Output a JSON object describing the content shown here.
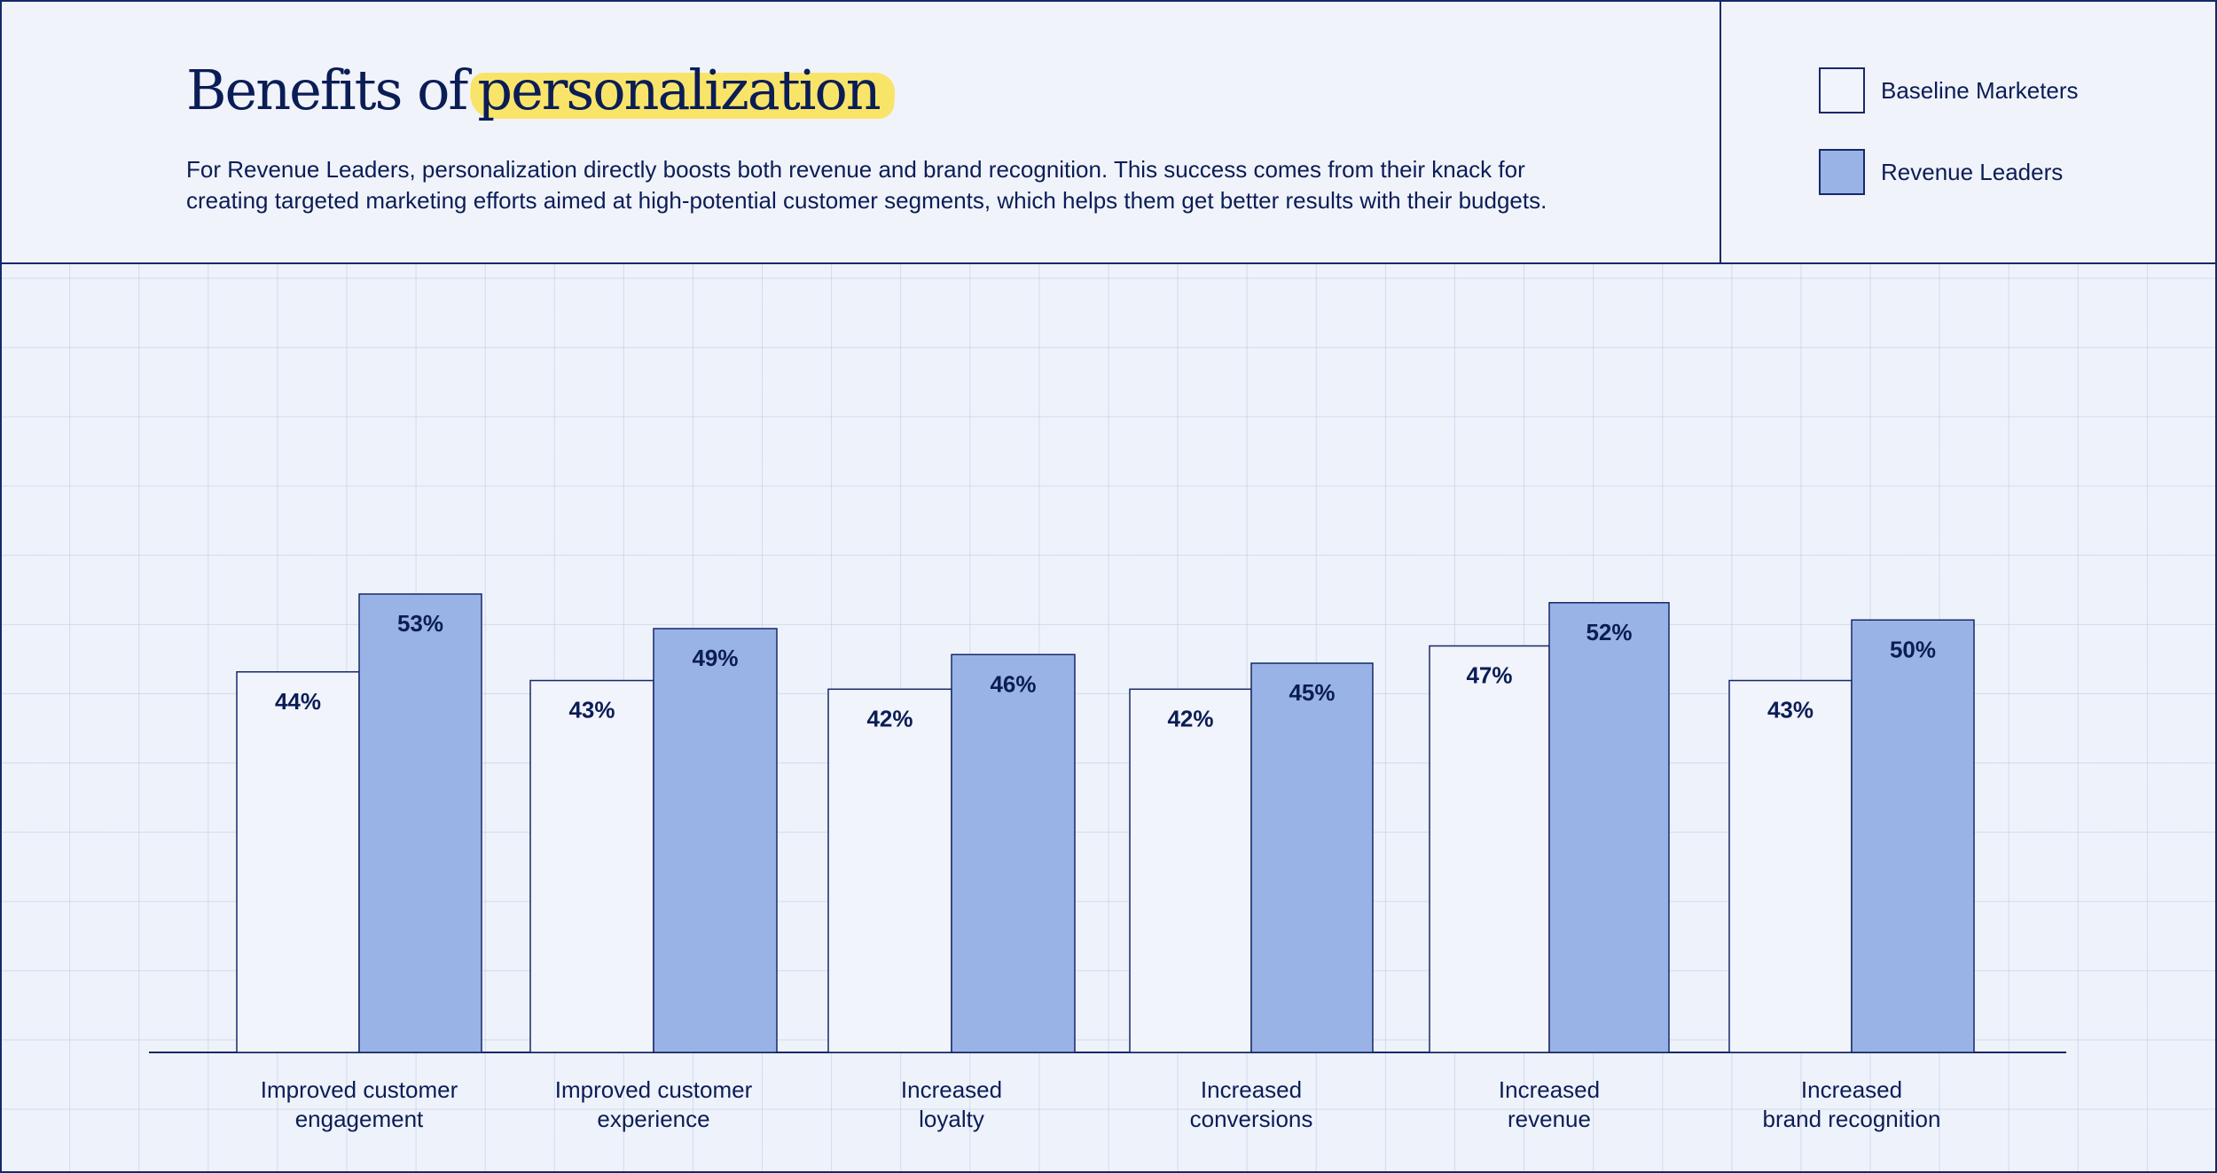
{
  "header": {
    "title_plain": "Benefits of",
    "title_highlight": "personalization",
    "description_line1": "For Revenue Leaders, personalization directly boosts both revenue and brand recognition. This success comes from their knack for",
    "description_line2": "creating targeted marketing efforts aimed at high-potential customer segments, which helps them get better results with their budgets."
  },
  "legend": [
    {
      "label": "Baseline Marketers",
      "color": "#f1f4fb"
    },
    {
      "label": "Revenue Leaders",
      "color": "#9ab3e6"
    }
  ],
  "colors": {
    "outline": "#16286a",
    "text": "#0b1d56",
    "highlight": "#f9e46a",
    "baseline_fill": "#f1f4fb",
    "leaders_fill": "#9ab3e6"
  },
  "chart_data": {
    "type": "bar",
    "title": "Benefits of personalization",
    "categories": [
      [
        "Improved customer",
        "engagement"
      ],
      [
        "Improved customer",
        "experience"
      ],
      [
        "Increased",
        "loyalty"
      ],
      [
        "Increased",
        "conversions"
      ],
      [
        "Increased",
        "revenue"
      ],
      [
        "Increased",
        "brand recognition"
      ]
    ],
    "series": [
      {
        "name": "Baseline Marketers",
        "values": [
          44,
          43,
          42,
          42,
          47,
          43
        ],
        "labels": [
          "44%",
          "43%",
          "42%",
          "42%",
          "47%",
          "43%"
        ]
      },
      {
        "name": "Revenue Leaders",
        "values": [
          53,
          49,
          46,
          45,
          52,
          50
        ],
        "labels": [
          "53%",
          "49%",
          "46%",
          "45%",
          "52%",
          "50%"
        ]
      }
    ],
    "ylim": [
      0,
      53
    ],
    "xlabel": "",
    "ylabel": "",
    "legend_position": "top-right",
    "grid": true
  }
}
